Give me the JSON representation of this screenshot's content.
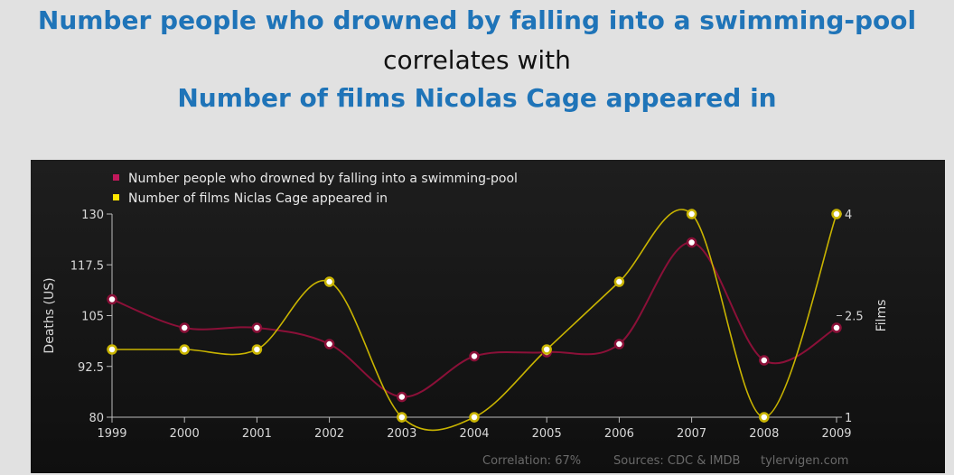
{
  "title": {
    "line1": "Number people who drowned by falling into a swimming-pool",
    "line2": "correlates with",
    "line3": "Number of films Nicolas Cage appeared in"
  },
  "colors": {
    "title_blue": "#1f74b8",
    "series_drowned": "#8b1038",
    "series_films": "#c9b400",
    "legend_drowned": "#c2185b",
    "legend_films": "#ffe600"
  },
  "chart_data": {
    "type": "line",
    "x": [
      1999,
      2000,
      2001,
      2002,
      2003,
      2004,
      2005,
      2006,
      2007,
      2008,
      2009
    ],
    "series": [
      {
        "name": "Number people who drowned by falling into a swimming-pool",
        "axis": "left",
        "values": [
          109,
          102,
          102,
          98,
          85,
          95,
          96,
          98,
          123,
          94,
          102
        ]
      },
      {
        "name": "Number of films Niclas Cage appeared in",
        "axis": "right",
        "values": [
          2,
          2,
          2,
          3,
          1,
          1,
          2,
          3,
          4,
          1,
          4
        ]
      }
    ],
    "yleft": {
      "label": "Deaths (US)",
      "lim": [
        80,
        130
      ],
      "ticks": [
        "130",
        "117.5",
        "105",
        "92.5",
        "80"
      ]
    },
    "yright": {
      "label": "Films",
      "lim": [
        1,
        4
      ],
      "ticks": [
        "4",
        "2.5",
        "1"
      ]
    },
    "xticks": [
      "1999",
      "2000",
      "2001",
      "2002",
      "2003",
      "2004",
      "2005",
      "2006",
      "2007",
      "2008",
      "2009"
    ],
    "legend_position": "top-left",
    "grid": false,
    "footer": {
      "correlation": "Correlation: 67%",
      "sources": "Sources: CDC & IMDB",
      "site": "tylervigen.com"
    }
  }
}
